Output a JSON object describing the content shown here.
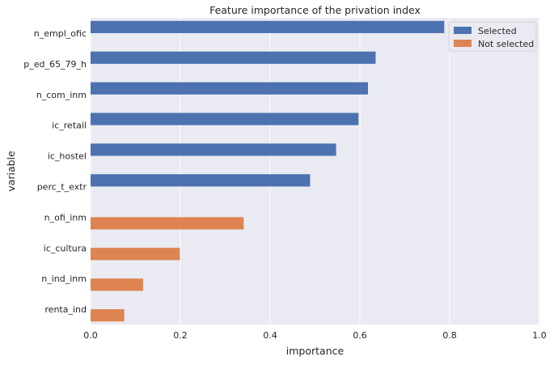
{
  "chart_data": {
    "type": "bar",
    "orientation": "horizontal",
    "title": "Feature importance of the privation index",
    "xlabel": "importance",
    "ylabel": "variable",
    "xlim": [
      0,
      1
    ],
    "xticks": [
      "0.0",
      "0.2",
      "0.4",
      "0.6",
      "0.8",
      "1.0"
    ],
    "grid": true,
    "legend_position": "top-right",
    "categories": [
      "n_empl_ofic",
      "p_ed_65_79_h",
      "n_com_inm",
      "ic_retail",
      "ic_hostel",
      "perc_t_extr",
      "n_ofi_inm",
      "ic_cultura",
      "n_ind_inm",
      "renta_ind"
    ],
    "series": [
      {
        "name": "Selected",
        "color": "#4c72b0",
        "values": [
          0.788,
          0.635,
          0.618,
          0.597,
          0.547,
          0.489,
          null,
          null,
          null,
          null
        ]
      },
      {
        "name": "Not selected",
        "color": "#dd8452",
        "values": [
          null,
          null,
          null,
          null,
          null,
          null,
          0.341,
          0.199,
          0.117,
          0.075
        ]
      }
    ],
    "background_color": "#eaeaf2"
  }
}
